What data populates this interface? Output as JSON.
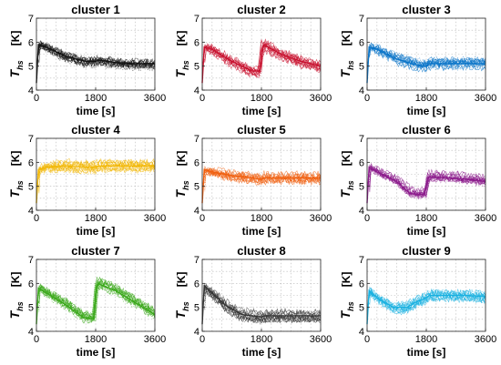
{
  "chart_data": [
    {
      "type": "line",
      "title": "cluster 1",
      "xlabel": "time [s]",
      "ylabel_main": "T",
      "ylabel_sub": "hs",
      "ylabel_unit": "[K]",
      "color": "#111111",
      "x_ticks": [
        "0",
        "1800",
        "3600"
      ],
      "y_ticks": [
        "4",
        "5",
        "6",
        "7"
      ],
      "xlim": [
        0,
        3600
      ],
      "ylim": [
        4,
        7
      ],
      "grid": true,
      "series": [
        {
          "x": [
            0,
            60,
            300,
            900,
            1500,
            1800,
            1900,
            2400,
            3000,
            3600
          ],
          "y": [
            4.3,
            5.9,
            5.8,
            5.4,
            5.2,
            5.2,
            5.25,
            5.15,
            5.1,
            5.1
          ]
        }
      ]
    },
    {
      "type": "line",
      "title": "cluster 2",
      "xlabel": "time [s]",
      "ylabel_main": "T",
      "ylabel_sub": "hs",
      "ylabel_unit": "[K]",
      "color": "#c8102e",
      "x_ticks": [
        "0",
        "1800",
        "3600"
      ],
      "y_ticks": [
        "4",
        "5",
        "6",
        "7"
      ],
      "xlim": [
        0,
        3600
      ],
      "ylim": [
        4,
        7
      ],
      "grid": true,
      "series": [
        {
          "x": [
            0,
            60,
            300,
            900,
            1500,
            1750,
            1800,
            1850,
            2400,
            3000,
            3600
          ],
          "y": [
            4.3,
            5.8,
            5.7,
            5.2,
            4.8,
            4.8,
            5.5,
            5.9,
            5.5,
            5.2,
            5.0
          ]
        }
      ]
    },
    {
      "type": "line",
      "title": "cluster 3",
      "xlabel": "time [s]",
      "ylabel_main": "T",
      "ylabel_sub": "hs",
      "ylabel_unit": "[K]",
      "color": "#0a74c8",
      "x_ticks": [
        "0",
        "1800",
        "3600"
      ],
      "y_ticks": [
        "4",
        "5",
        "6",
        "7"
      ],
      "xlim": [
        0,
        3600
      ],
      "ylim": [
        4,
        7
      ],
      "grid": true,
      "series": [
        {
          "x": [
            0,
            60,
            300,
            900,
            1500,
            1800,
            1900,
            2400,
            3000,
            3600
          ],
          "y": [
            4.3,
            5.8,
            5.7,
            5.3,
            5.05,
            5.0,
            5.1,
            5.1,
            5.1,
            5.1
          ]
        }
      ]
    },
    {
      "type": "line",
      "title": "cluster 4",
      "xlabel": "time [s]",
      "ylabel_main": "T",
      "ylabel_sub": "hs",
      "ylabel_unit": "[K]",
      "color": "#f2b705",
      "x_ticks": [
        "0",
        "1800",
        "3600"
      ],
      "y_ticks": [
        "4",
        "5",
        "6",
        "7"
      ],
      "xlim": [
        0,
        3600
      ],
      "ylim": [
        4,
        7
      ],
      "grid": true,
      "series": [
        {
          "x": [
            0,
            60,
            300,
            900,
            1500,
            1800,
            1900,
            2400,
            3000,
            3600
          ],
          "y": [
            4.3,
            5.7,
            5.8,
            5.85,
            5.8,
            5.8,
            5.85,
            5.85,
            5.85,
            5.85
          ]
        }
      ]
    },
    {
      "type": "line",
      "title": "cluster 5",
      "xlabel": "time [s]",
      "ylabel_main": "T",
      "ylabel_sub": "hs",
      "ylabel_unit": "[K]",
      "color": "#f06010",
      "x_ticks": [
        "0",
        "1800",
        "3600"
      ],
      "y_ticks": [
        "4",
        "5",
        "6",
        "7"
      ],
      "xlim": [
        0,
        3600
      ],
      "ylim": [
        4,
        7
      ],
      "grid": true,
      "series": [
        {
          "x": [
            0,
            60,
            300,
            900,
            1500,
            1800,
            1900,
            2400,
            3000,
            3600
          ],
          "y": [
            4.3,
            5.7,
            5.6,
            5.45,
            5.35,
            5.3,
            5.35,
            5.35,
            5.35,
            5.35
          ]
        }
      ]
    },
    {
      "type": "line",
      "title": "cluster 6",
      "xlabel": "time [s]",
      "ylabel_main": "T",
      "ylabel_sub": "hs",
      "ylabel_unit": "[K]",
      "color": "#8b1a8b",
      "x_ticks": [
        "0",
        "1800",
        "3600"
      ],
      "y_ticks": [
        "4",
        "5",
        "6",
        "7"
      ],
      "xlim": [
        0,
        3600
      ],
      "ylim": [
        4,
        7
      ],
      "grid": true,
      "series": [
        {
          "x": [
            0,
            60,
            300,
            900,
            1300,
            1750,
            1800,
            1850,
            2400,
            3000,
            3600
          ],
          "y": [
            4.3,
            5.8,
            5.6,
            5.2,
            4.7,
            4.65,
            5.0,
            5.4,
            5.35,
            5.3,
            5.2
          ]
        }
      ]
    },
    {
      "type": "line",
      "title": "cluster 7",
      "xlabel": "time [s]",
      "ylabel_main": "T",
      "ylabel_sub": "hs",
      "ylabel_unit": "[K]",
      "color": "#3aa81a",
      "x_ticks": [
        "0",
        "1800",
        "3600"
      ],
      "y_ticks": [
        "4",
        "5",
        "6",
        "7"
      ],
      "xlim": [
        0,
        3600
      ],
      "ylim": [
        4,
        7
      ],
      "grid": true,
      "series": [
        {
          "x": [
            0,
            60,
            300,
            900,
            1400,
            1750,
            1800,
            1850,
            2400,
            3000,
            3600
          ],
          "y": [
            4.3,
            5.8,
            5.6,
            5.1,
            4.6,
            4.5,
            5.5,
            6.0,
            5.7,
            5.2,
            4.7
          ]
        }
      ]
    },
    {
      "type": "line",
      "title": "cluster 8",
      "xlabel": "time [s]",
      "ylabel_main": "T",
      "ylabel_sub": "hs",
      "ylabel_unit": "[K]",
      "color": "#333333",
      "x_ticks": [
        "0",
        "1800",
        "3600"
      ],
      "y_ticks": [
        "4",
        "5",
        "6",
        "7"
      ],
      "xlim": [
        0,
        3600
      ],
      "ylim": [
        4,
        7
      ],
      "grid": true,
      "series": [
        {
          "x": [
            0,
            60,
            300,
            700,
            1200,
            1800,
            1900,
            2400,
            3000,
            3600
          ],
          "y": [
            4.3,
            5.9,
            5.6,
            5.1,
            4.7,
            4.6,
            4.65,
            4.65,
            4.65,
            4.65
          ]
        }
      ]
    },
    {
      "type": "line",
      "title": "cluster 9",
      "xlabel": "time [s]",
      "ylabel_main": "T",
      "ylabel_sub": "hs",
      "ylabel_unit": "[K]",
      "color": "#17b0e0",
      "x_ticks": [
        "0",
        "1800",
        "3600"
      ],
      "y_ticks": [
        "4",
        "5",
        "6",
        "7"
      ],
      "xlim": [
        0,
        3600
      ],
      "ylim": [
        4,
        7
      ],
      "grid": true,
      "series": [
        {
          "x": [
            0,
            60,
            300,
            800,
            1200,
            1600,
            1800,
            1900,
            2400,
            3000,
            3600
          ],
          "y": [
            4.3,
            5.7,
            5.4,
            5.0,
            5.0,
            5.3,
            5.4,
            5.5,
            5.5,
            5.5,
            5.45
          ]
        }
      ]
    }
  ]
}
